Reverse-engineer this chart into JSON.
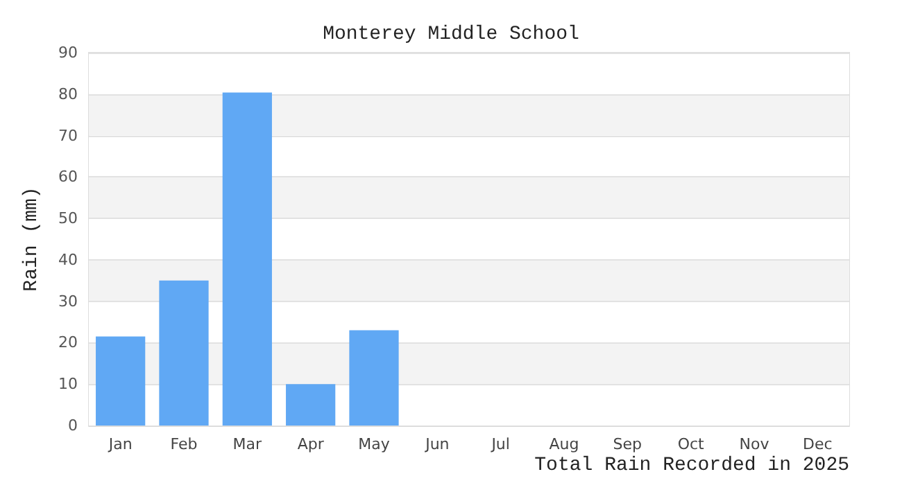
{
  "chart_data": {
    "type": "bar",
    "title": "Monterey Middle School",
    "xlabel": "Total Rain Recorded in 2025",
    "ylabel": "Rain (mm)",
    "categories": [
      "Jan",
      "Feb",
      "Mar",
      "Apr",
      "May",
      "Jun",
      "Jul",
      "Aug",
      "Sep",
      "Oct",
      "Nov",
      "Dec"
    ],
    "values": [
      21.5,
      35,
      80.4,
      10,
      23,
      null,
      null,
      null,
      null,
      null,
      null,
      null
    ],
    "color": "#60a8f4",
    "ylim": [
      0,
      90
    ],
    "yticks": [
      0,
      10,
      20,
      30,
      40,
      50,
      60,
      70,
      80,
      90
    ],
    "grid": "y"
  }
}
